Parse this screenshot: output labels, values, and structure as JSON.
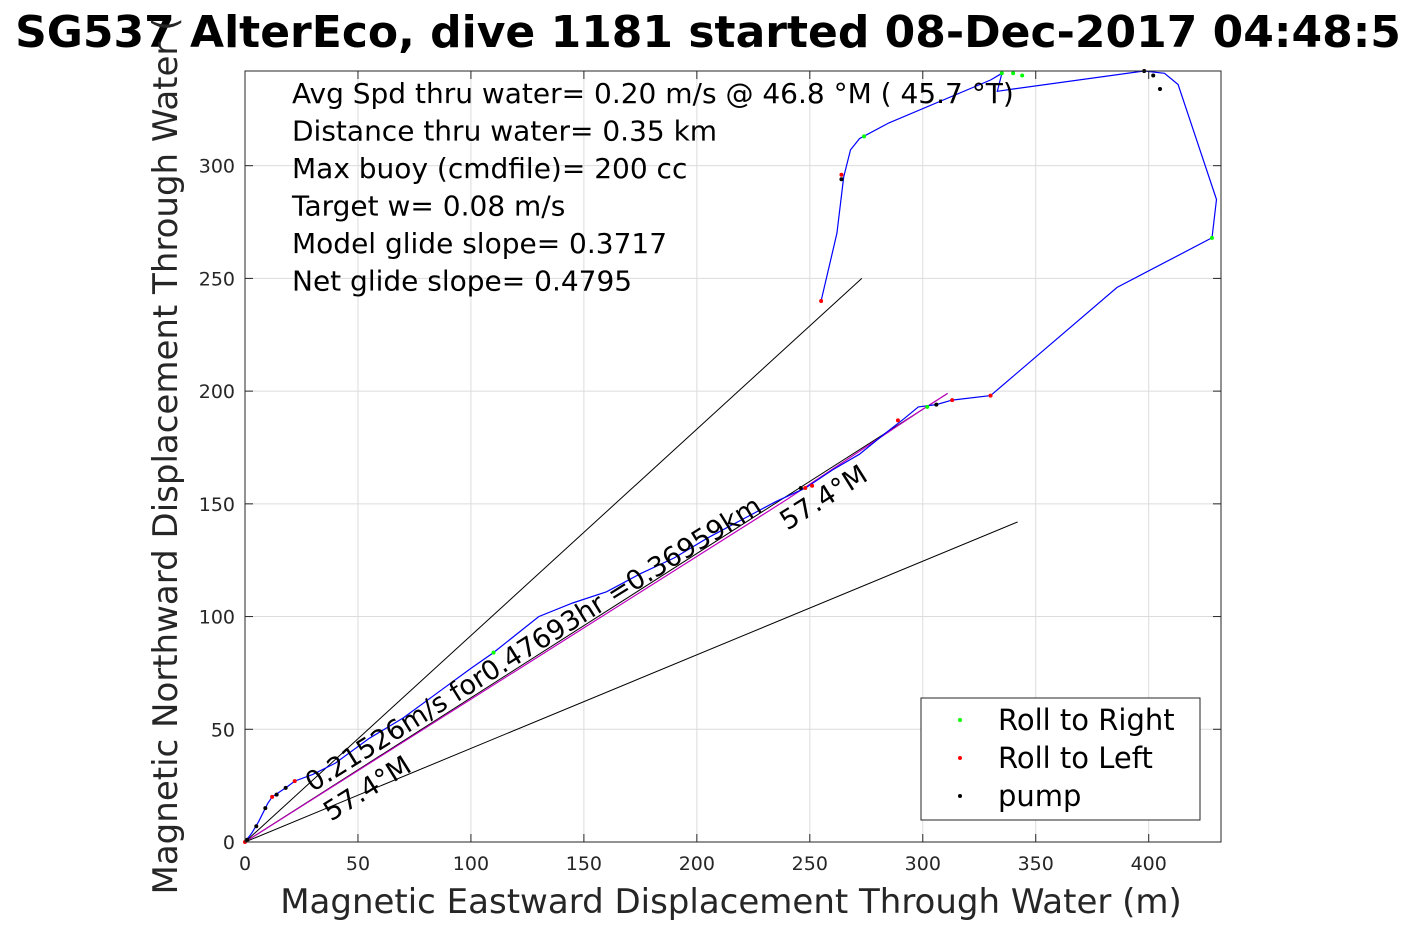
{
  "chart_data": {
    "type": "line",
    "title": "SG537 AlterEco, dive 1181 started 08-Dec-2017 04:48:5",
    "xlabel": "Magnetic Eastward Displacement Through Water (m)",
    "ylabel": "Magnetic Northward Displacement Through Water (",
    "xlim": [
      0,
      432
    ],
    "ylim": [
      0,
      342
    ],
    "xticks": [
      0,
      50,
      100,
      150,
      200,
      250,
      300,
      350,
      400
    ],
    "yticks": [
      0,
      50,
      100,
      150,
      200,
      250,
      300
    ],
    "grid": true,
    "legend_position": "bottom-right",
    "stats": [
      "Avg Spd thru water=  0.20 m/s @  46.8 °M ( 45.7 °T)",
      "Distance thru water=  0.35 km",
      "Max buoy (cmdfile)= 200 cc",
      "Target w= 0.08 m/s",
      "Model glide slope= 0.3717",
      "Net glide slope= 0.4795"
    ],
    "track": {
      "color": "#0000ff",
      "points": [
        [
          0,
          0
        ],
        [
          3,
          4
        ],
        [
          6,
          9
        ],
        [
          8,
          13
        ],
        [
          10,
          17
        ],
        [
          12,
          20
        ],
        [
          15,
          22
        ],
        [
          18,
          24
        ],
        [
          22,
          27
        ],
        [
          30,
          30
        ],
        [
          40,
          35
        ],
        [
          55,
          46
        ],
        [
          70,
          55
        ],
        [
          85,
          66
        ],
        [
          100,
          77
        ],
        [
          110,
          84
        ],
        [
          120,
          92
        ],
        [
          130,
          100
        ],
        [
          145,
          106
        ],
        [
          160,
          111
        ],
        [
          175,
          119
        ],
        [
          190,
          126
        ],
        [
          205,
          135
        ],
        [
          220,
          143
        ],
        [
          235,
          151
        ],
        [
          248,
          157
        ],
        [
          260,
          165
        ],
        [
          272,
          172
        ],
        [
          283,
          181
        ],
        [
          292,
          188
        ],
        [
          298,
          193
        ],
        [
          306,
          194
        ],
        [
          313,
          196
        ],
        [
          330,
          198
        ],
        [
          386,
          246
        ],
        [
          428,
          268
        ],
        [
          430,
          285
        ],
        [
          413,
          336
        ],
        [
          407,
          341
        ],
        [
          398,
          342
        ],
        [
          340,
          334
        ],
        [
          333,
          333
        ],
        [
          335,
          341
        ],
        [
          330,
          338
        ],
        [
          285,
          319
        ],
        [
          272,
          312
        ],
        [
          268,
          307
        ],
        [
          265,
          295
        ],
        [
          262,
          270
        ],
        [
          255,
          240
        ]
      ]
    },
    "heading_line": {
      "color": "#c000c0",
      "points": [
        [
          0,
          0
        ],
        [
          60,
          38
        ],
        [
          120,
          76
        ],
        [
          180,
          114
        ],
        [
          240,
          152
        ],
        [
          300,
          192
        ],
        [
          311,
          199
        ]
      ]
    },
    "wedge_lines": {
      "color": "#000000",
      "lines": [
        [
          [
            0,
            0
          ],
          [
            273,
            250
          ]
        ],
        [
          [
            0,
            0
          ],
          [
            342,
            142
          ]
        ],
        [
          [
            0,
            0
          ],
          [
            311,
            199
          ]
        ]
      ]
    },
    "series": [
      {
        "name": "Roll to Right",
        "color": "#00ff00",
        "points": [
          [
            110,
            84
          ],
          [
            335,
            341
          ],
          [
            340,
            341
          ],
          [
            344,
            340
          ],
          [
            302,
            193
          ],
          [
            428,
            268
          ],
          [
            274,
            313
          ]
        ]
      },
      {
        "name": "Roll to Left",
        "color": "#ff0000",
        "points": [
          [
            0,
            0
          ],
          [
            12,
            20
          ],
          [
            22,
            27
          ],
          [
            255,
            240
          ],
          [
            264,
            296
          ],
          [
            289,
            187
          ],
          [
            313,
            196
          ],
          [
            330,
            198
          ],
          [
            248,
            157
          ],
          [
            251,
            158
          ]
        ]
      },
      {
        "name": "pump",
        "color": "#000000",
        "points": [
          [
            1,
            1
          ],
          [
            5,
            7
          ],
          [
            9,
            15
          ],
          [
            14,
            21
          ],
          [
            18,
            24
          ],
          [
            264,
            294
          ],
          [
            398,
            342
          ],
          [
            402,
            340
          ],
          [
            405,
            334
          ],
          [
            306,
            194
          ],
          [
            246,
            157
          ]
        ]
      }
    ],
    "annotations": [
      {
        "text": "0.21526m/s for0.47693hr =0.36959km",
        "x": 30,
        "y": 22,
        "angle": -32
      },
      {
        "text": "57.4°M",
        "x": 38,
        "y": 9,
        "angle": -32
      },
      {
        "text": "57.4°M",
        "x": 240,
        "y": 138,
        "angle": -32
      }
    ]
  }
}
